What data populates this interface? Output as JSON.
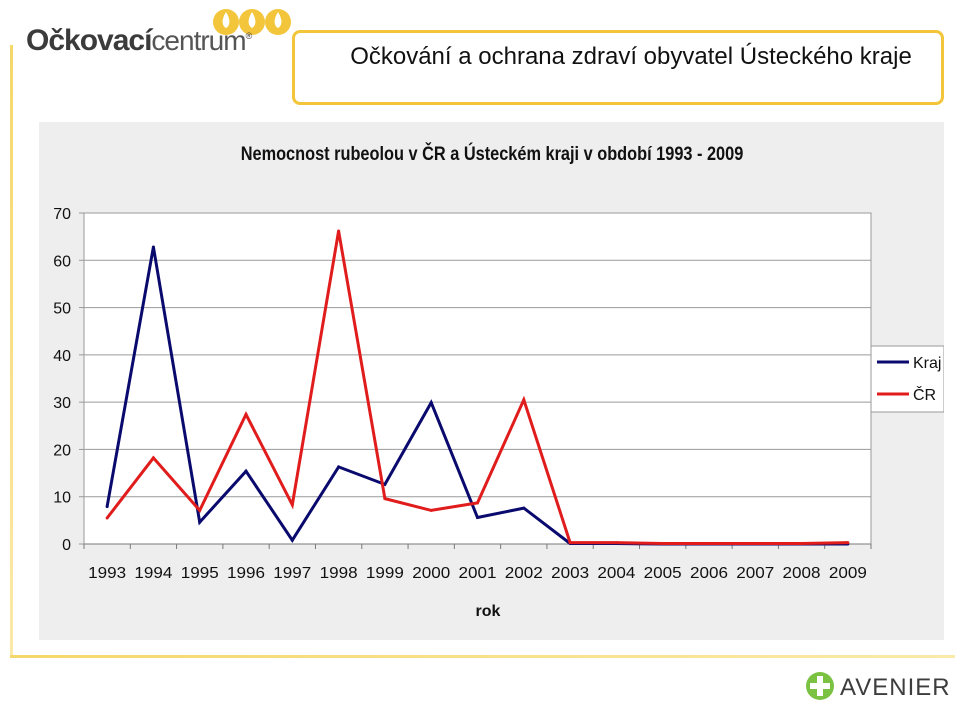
{
  "logo": {
    "brand_bold": "Očkovací",
    "brand_light": "centrum",
    "registered": "®"
  },
  "header": {
    "title": "Očkování a ochrana zdraví obyvatel Ústeckého kraje"
  },
  "footer": {
    "brand": "AVENIER"
  },
  "colors": {
    "kraj": "#0a0a6e",
    "cr": "#e01c1c",
    "accent": "#f3c53a",
    "panel": "#eeeeee"
  },
  "chart_data": {
    "type": "line",
    "title": "Nemocnost  rubeolou v ČR a Ústeckém kraji v období 1993 - 2009",
    "xlabel": "rok",
    "ylabel": "",
    "categories": [
      "1993",
      "1994",
      "1995",
      "1996",
      "1997",
      "1998",
      "1999",
      "2000",
      "2001",
      "2002",
      "2003",
      "2004",
      "2005",
      "2006",
      "2007",
      "2008",
      "2009"
    ],
    "ylim": [
      0,
      70
    ],
    "yticks": [
      0,
      10,
      20,
      30,
      40,
      50,
      60,
      70
    ],
    "grid": true,
    "legend_position": "right",
    "series": [
      {
        "name": "Kraj",
        "color": "#0a0a6e",
        "values": [
          7.9,
          62.8,
          4.6,
          15.4,
          0.8,
          16.3,
          12.6,
          29.9,
          5.6,
          7.6,
          0.1,
          0.1,
          0,
          0,
          0,
          0,
          0
        ]
      },
      {
        "name": "ČR",
        "color": "#e01c1c",
        "values": [
          5.5,
          18.2,
          7.1,
          27.4,
          8.3,
          66.2,
          9.6,
          7.1,
          8.7,
          30.5,
          0.3,
          0.3,
          0.1,
          0.1,
          0.1,
          0.1,
          0.3
        ]
      }
    ]
  }
}
